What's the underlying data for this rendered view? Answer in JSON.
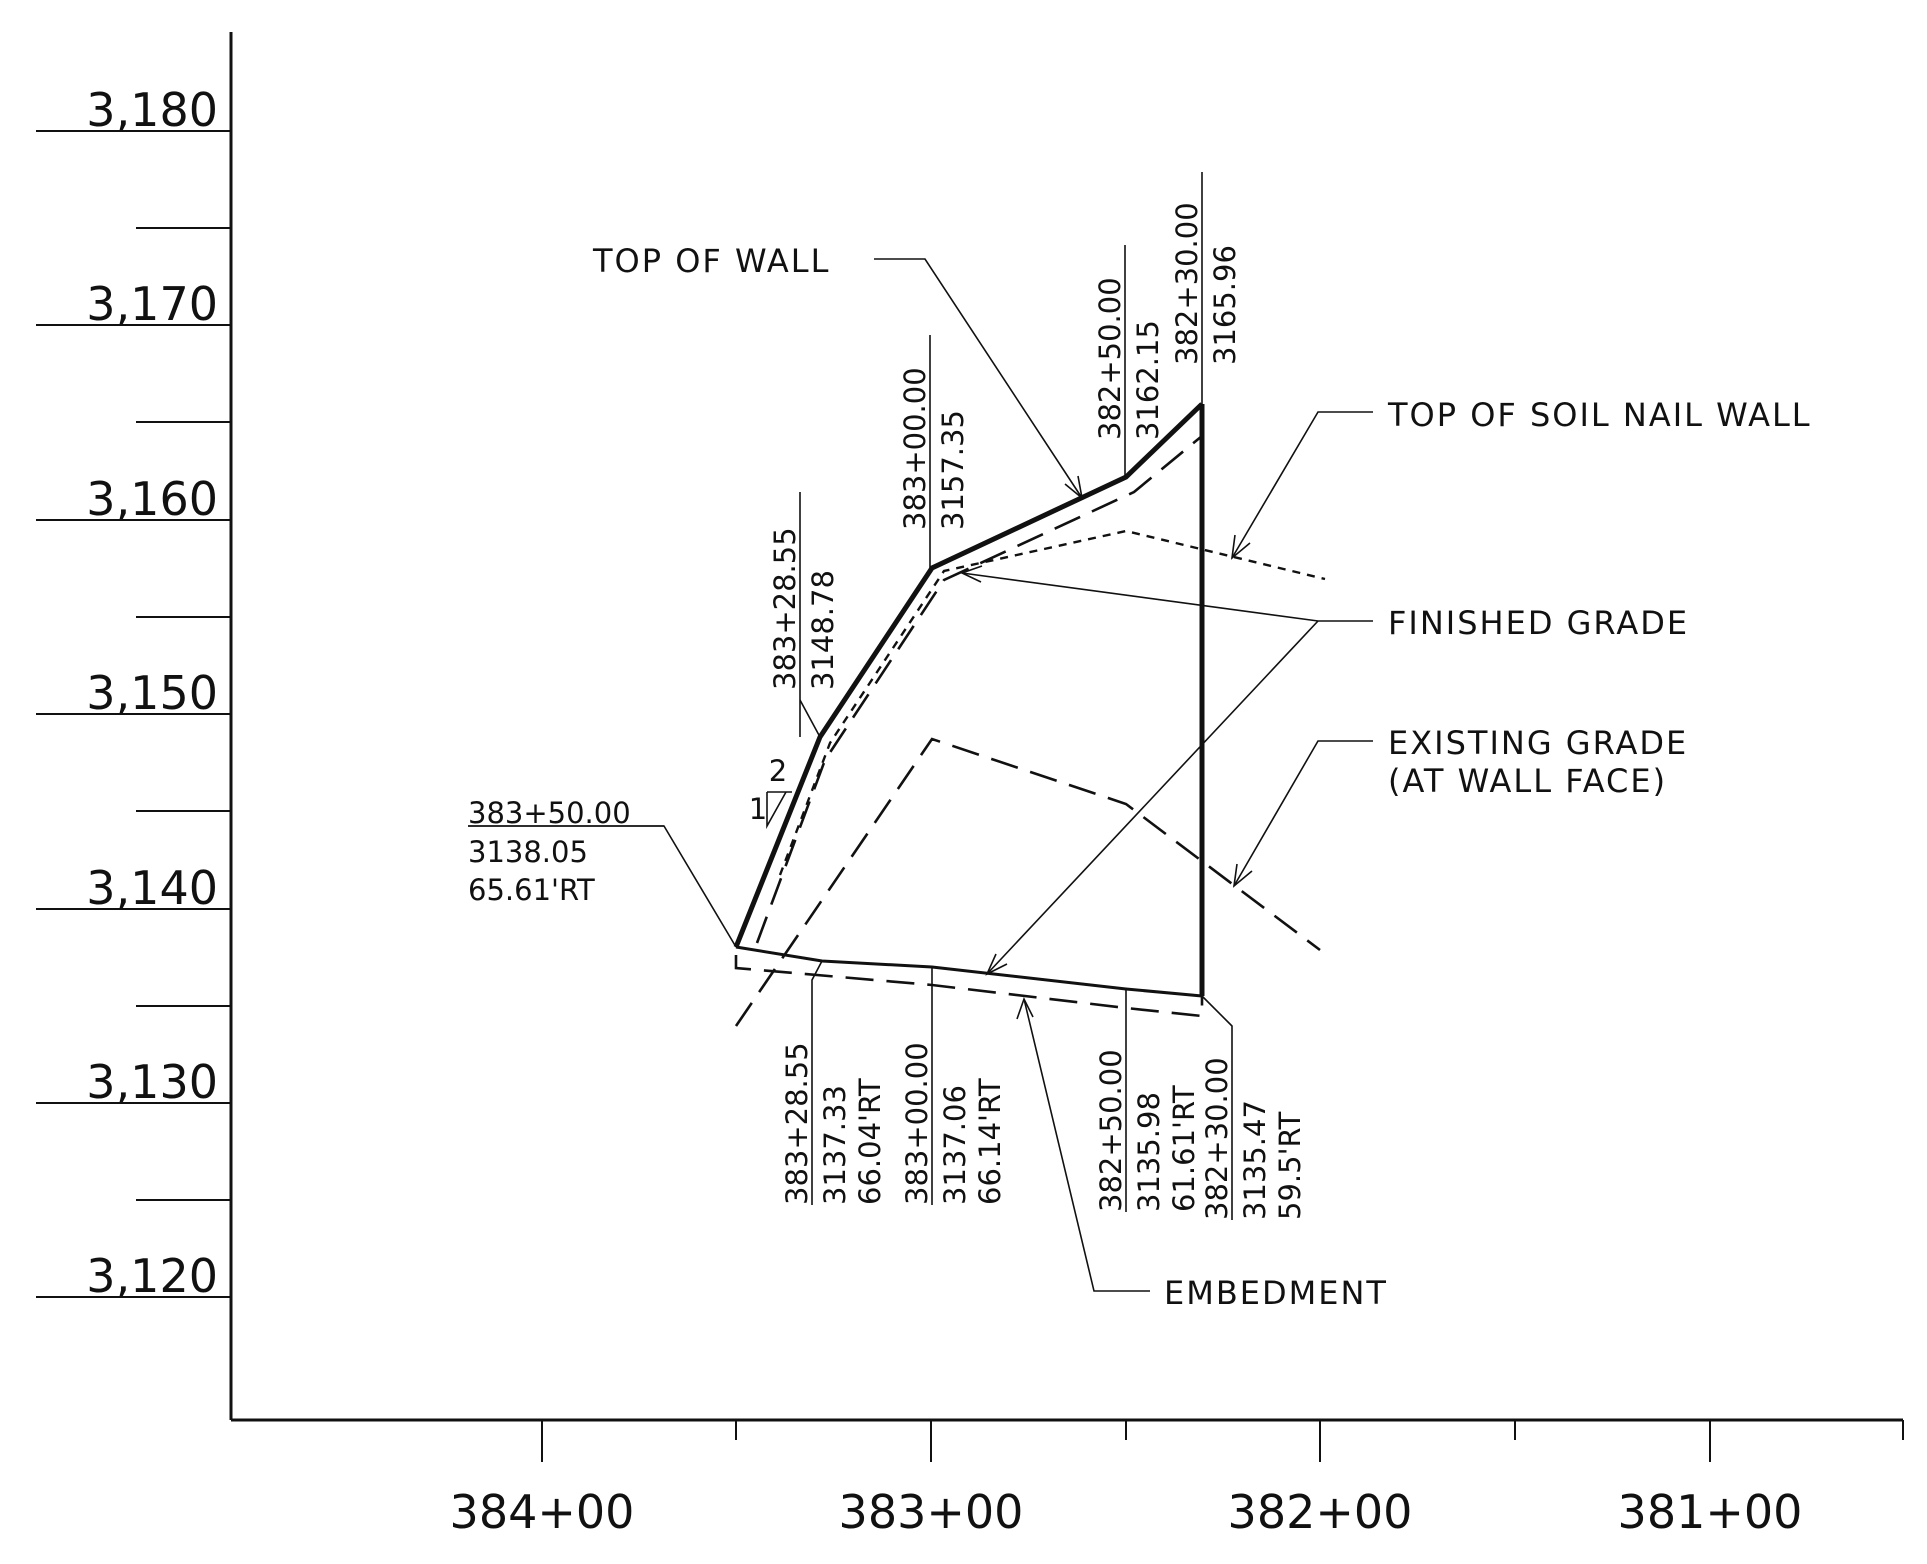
{
  "y_axis": {
    "labels": [
      "3,180",
      "3,170",
      "3,160",
      "3,150",
      "3,140",
      "3,130",
      "3,120"
    ]
  },
  "x_axis": {
    "labels": [
      "384+00",
      "383+00",
      "382+00",
      "381+00"
    ]
  },
  "callouts": {
    "top_of_wall": "TOP OF WALL",
    "top_of_soil_nail_wall": "TOP OF SOIL NAIL WALL",
    "finished_grade": "FINISHED GRADE",
    "existing_grade": "EXISTING GRADE",
    "existing_grade_sub": "(AT WALL FACE)",
    "embedment": "EMBEDMENT"
  },
  "slope": {
    "rise": "2",
    "run": "1"
  },
  "top_points": [
    {
      "station": "383+28.55",
      "elev": "3148.78"
    },
    {
      "station": "383+00.00",
      "elev": "3157.35"
    },
    {
      "station": "382+50.00",
      "elev": "3162.15"
    },
    {
      "station": "382+30.00",
      "elev": "3165.96"
    }
  ],
  "left_end_point": {
    "station": "383+50.00",
    "elev": "3138.05",
    "offset": "65.61'RT"
  },
  "bottom_points": [
    {
      "station": "383+28.55",
      "elev": "3137.33",
      "offset": "66.04'RT"
    },
    {
      "station": "383+00.00",
      "elev": "3137.06",
      "offset": "66.14'RT"
    },
    {
      "station": "382+50.00",
      "elev": "3135.98",
      "offset": "61.61'RT"
    },
    {
      "station": "382+30.00",
      "elev": "3135.47",
      "offset": "59.5'RT"
    }
  ]
}
